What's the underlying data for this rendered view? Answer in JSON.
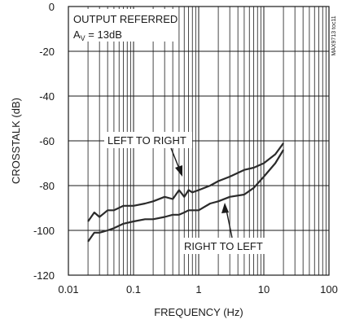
{
  "chart_data": {
    "type": "line",
    "xscale": "log",
    "xlim": [
      0.01,
      100
    ],
    "ylim": [
      -120,
      0
    ],
    "xlabel": "FREQUENCY (Hz)",
    "ylabel": "CROSSTALK (dB)",
    "xticks": [
      "0.01",
      "0.1",
      "1",
      "10",
      "100"
    ],
    "yticks": [
      "0",
      "-20",
      "-40",
      "-60",
      "-80",
      "-100",
      "-120"
    ],
    "grid": true,
    "annotations": {
      "line1": "OUTPUT REFERRED",
      "line2_main": "A",
      "line2_sub": "V",
      "line2_rest": " = 13dB",
      "watermark": "MAX9713 toc11"
    },
    "series": [
      {
        "name": "LEFT TO RIGHT",
        "x": [
          0.02,
          0.025,
          0.03,
          0.04,
          0.05,
          0.07,
          0.1,
          0.15,
          0.2,
          0.3,
          0.4,
          0.5,
          0.6,
          0.7,
          0.8,
          1,
          1.5,
          2,
          3,
          5,
          7,
          10,
          15,
          20
        ],
        "y": [
          -96,
          -92,
          -94,
          -91,
          -91,
          -89,
          -89,
          -88,
          -87,
          -85,
          -86,
          -82,
          -85,
          -82,
          -83,
          -82,
          -80,
          -78,
          -76,
          -73,
          -72,
          -70,
          -66,
          -61
        ]
      },
      {
        "name": "RIGHT TO LEFT",
        "x": [
          0.02,
          0.025,
          0.03,
          0.04,
          0.05,
          0.07,
          0.1,
          0.15,
          0.2,
          0.3,
          0.4,
          0.5,
          0.6,
          0.7,
          0.8,
          1,
          1.5,
          2,
          3,
          5,
          7,
          10,
          15,
          20
        ],
        "y": [
          -105,
          -101,
          -101,
          -100,
          -99,
          -97,
          -96,
          -95,
          -95,
          -94,
          -93,
          -93,
          -92,
          -91,
          -91,
          -91,
          -88,
          -87,
          -85,
          -84,
          -81,
          -76,
          -70,
          -64
        ]
      }
    ]
  }
}
